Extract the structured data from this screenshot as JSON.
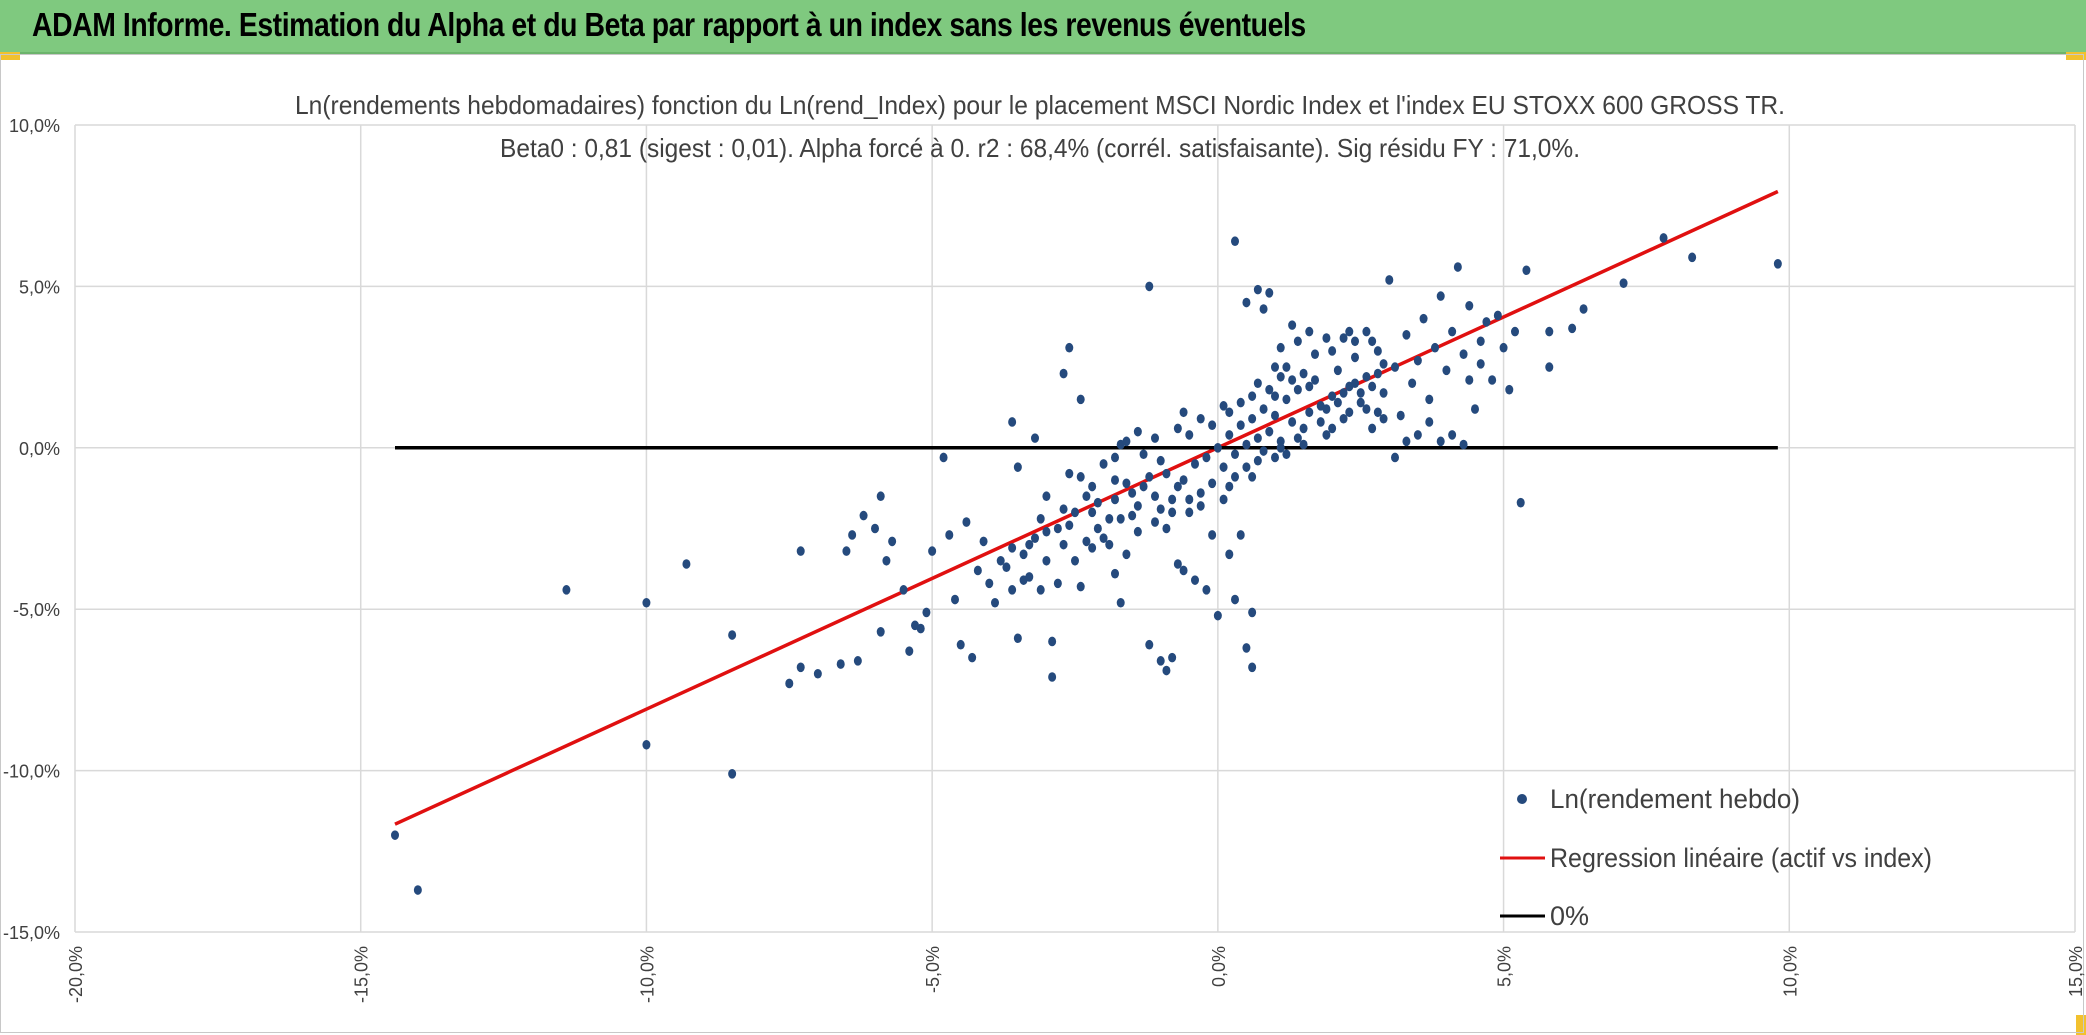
{
  "header": {
    "title": "ADAM Informe. Estimation du Alpha et du Beta par rapport à un index sans les revenus éventuels"
  },
  "colors": {
    "header_bg": "#7fc97f",
    "points": "#254a7d",
    "regression": "#e01010",
    "zero_line": "#000000",
    "grid": "#d9d9d9"
  },
  "chart_data": {
    "type": "scatter",
    "title_line1": "Ln(rendements hebdomadaires) fonction du Ln(rend_Index) pour le placement MSCI Nordic Index et l'index EU STOXX 600 GROSS TR.",
    "title_line2": "Beta0 : 0,81 (sigest : 0,01). Alpha forcé à 0. r2 : 68,4% (corrél. satisfaisante). Sig résidu FY : 71,0%.",
    "xlim": [
      -0.2,
      0.15
    ],
    "ylim": [
      -0.15,
      0.1
    ],
    "x_ticks": [
      "-20,0%",
      "-15,0%",
      "-10,0%",
      "-5,0%",
      "0,0%",
      "5,0%",
      "10,0%",
      "15,0%"
    ],
    "x_tick_values": [
      -0.2,
      -0.15,
      -0.1,
      -0.05,
      0.0,
      0.05,
      0.1,
      0.15
    ],
    "y_ticks": [
      "10,0%",
      "5,0%",
      "0,0%",
      "-5,0%",
      "-10,0%",
      "-15,0%"
    ],
    "y_tick_values": [
      0.1,
      0.05,
      0.0,
      -0.05,
      -0.1,
      -0.15
    ],
    "grid": true,
    "legend_position": "bottom-right",
    "series": [
      {
        "name": "Ln(rendement hebdo)",
        "kind": "points",
        "points": [
          [
            -0.144,
            -0.12
          ],
          [
            -0.14,
            -0.137
          ],
          [
            -0.114,
            -0.044
          ],
          [
            -0.1,
            -0.048
          ],
          [
            -0.1,
            -0.092
          ],
          [
            -0.093,
            -0.036
          ],
          [
            -0.085,
            -0.101
          ],
          [
            -0.085,
            -0.058
          ],
          [
            -0.075,
            -0.073
          ],
          [
            -0.073,
            -0.068
          ],
          [
            -0.073,
            -0.032
          ],
          [
            -0.07,
            -0.07
          ],
          [
            -0.066,
            -0.067
          ],
          [
            -0.065,
            -0.032
          ],
          [
            -0.064,
            -0.027
          ],
          [
            -0.063,
            -0.066
          ],
          [
            -0.062,
            -0.021
          ],
          [
            -0.06,
            -0.025
          ],
          [
            -0.059,
            -0.015
          ],
          [
            -0.059,
            -0.057
          ],
          [
            -0.058,
            -0.035
          ],
          [
            -0.057,
            -0.029
          ],
          [
            -0.055,
            -0.044
          ],
          [
            -0.054,
            -0.063
          ],
          [
            -0.053,
            -0.055
          ],
          [
            -0.052,
            -0.056
          ],
          [
            -0.051,
            -0.051
          ],
          [
            -0.05,
            -0.032
          ],
          [
            -0.048,
            -0.003
          ],
          [
            -0.047,
            -0.027
          ],
          [
            -0.046,
            -0.047
          ],
          [
            -0.045,
            -0.061
          ],
          [
            -0.044,
            -0.023
          ],
          [
            -0.043,
            -0.065
          ],
          [
            -0.042,
            -0.038
          ],
          [
            -0.041,
            -0.029
          ],
          [
            -0.04,
            -0.042
          ],
          [
            -0.039,
            -0.048
          ],
          [
            -0.038,
            -0.035
          ],
          [
            -0.037,
            -0.037
          ],
          [
            -0.036,
            -0.031
          ],
          [
            -0.035,
            -0.006
          ],
          [
            -0.035,
            -0.059
          ],
          [
            -0.034,
            -0.041
          ],
          [
            -0.033,
            -0.03
          ],
          [
            -0.032,
            -0.028
          ],
          [
            -0.031,
            -0.044
          ],
          [
            -0.03,
            -0.015
          ],
          [
            -0.03,
            -0.026
          ],
          [
            -0.029,
            -0.06
          ],
          [
            -0.028,
            -0.042
          ],
          [
            -0.027,
            -0.019
          ],
          [
            -0.026,
            -0.024
          ],
          [
            -0.026,
            -0.008
          ],
          [
            -0.025,
            -0.035
          ],
          [
            -0.024,
            -0.043
          ],
          [
            -0.023,
            -0.029
          ],
          [
            -0.022,
            -0.012
          ],
          [
            -0.022,
            -0.031
          ],
          [
            -0.021,
            -0.017
          ],
          [
            -0.02,
            -0.028
          ],
          [
            -0.019,
            -0.022
          ],
          [
            -0.018,
            -0.039
          ],
          [
            -0.018,
            -0.01
          ],
          [
            -0.017,
            -0.022
          ],
          [
            -0.016,
            -0.033
          ],
          [
            -0.015,
            -0.014
          ],
          [
            -0.014,
            -0.026
          ],
          [
            -0.013,
            -0.012
          ],
          [
            -0.012,
            -0.061
          ],
          [
            -0.011,
            -0.023
          ],
          [
            -0.01,
            -0.019
          ],
          [
            -0.009,
            -0.008
          ],
          [
            -0.008,
            -0.016
          ],
          [
            -0.007,
            -0.036
          ],
          [
            -0.006,
            -0.01
          ],
          [
            -0.005,
            -0.02
          ],
          [
            -0.004,
            -0.005
          ],
          [
            -0.003,
            -0.014
          ],
          [
            -0.002,
            -0.003
          ],
          [
            -0.001,
            -0.011
          ],
          [
            0.0,
            0.0
          ],
          [
            0.001,
            -0.006
          ],
          [
            0.002,
            0.004
          ],
          [
            0.003,
            -0.002
          ],
          [
            0.004,
            0.007
          ],
          [
            0.005,
            0.001
          ],
          [
            0.006,
            0.009
          ],
          [
            0.007,
            0.003
          ],
          [
            0.008,
            0.012
          ],
          [
            0.009,
            0.005
          ],
          [
            0.01,
            0.01
          ],
          [
            0.011,
            0.002
          ],
          [
            0.012,
            0.015
          ],
          [
            0.013,
            0.008
          ],
          [
            0.014,
            0.018
          ],
          [
            0.015,
            0.006
          ],
          [
            0.016,
            0.011
          ],
          [
            0.017,
            0.021
          ],
          [
            0.018,
            0.013
          ],
          [
            0.019,
            0.004
          ],
          [
            0.02,
            0.016
          ],
          [
            0.021,
            0.024
          ],
          [
            0.022,
            0.009
          ],
          [
            0.023,
            0.019
          ],
          [
            0.024,
            0.028
          ],
          [
            0.025,
            0.014
          ],
          [
            0.026,
            0.022
          ],
          [
            0.027,
            0.006
          ],
          [
            0.028,
            0.03
          ],
          [
            0.029,
            0.017
          ],
          [
            0.03,
            0.052
          ],
          [
            0.031,
            0.025
          ],
          [
            0.032,
            0.01
          ],
          [
            0.033,
            0.035
          ],
          [
            0.034,
            0.02
          ],
          [
            0.035,
            0.027
          ],
          [
            0.036,
            0.04
          ],
          [
            0.037,
            0.015
          ],
          [
            0.038,
            0.031
          ],
          [
            0.039,
            0.047
          ],
          [
            0.04,
            0.024
          ],
          [
            0.041,
            0.036
          ],
          [
            0.042,
            0.056
          ],
          [
            0.043,
            0.029
          ],
          [
            0.044,
            0.044
          ],
          [
            0.045,
            0.012
          ],
          [
            0.046,
            0.033
          ],
          [
            0.047,
            0.039
          ],
          [
            0.048,
            0.021
          ],
          [
            0.049,
            0.041
          ],
          [
            0.05,
            0.031
          ],
          [
            0.051,
            0.018
          ],
          [
            0.052,
            0.036
          ],
          [
            0.053,
            -0.017
          ],
          [
            0.054,
            0.055
          ],
          [
            0.058,
            0.036
          ],
          [
            0.058,
            0.025
          ],
          [
            0.062,
            0.037
          ],
          [
            0.064,
            0.043
          ],
          [
            0.071,
            0.051
          ],
          [
            0.078,
            0.065
          ],
          [
            0.083,
            0.059
          ],
          [
            0.098,
            0.057
          ],
          [
            -0.012,
            0.05
          ],
          [
            0.003,
            0.064
          ],
          [
            0.005,
            0.045
          ],
          [
            0.007,
            0.049
          ],
          [
            0.009,
            0.048
          ],
          [
            0.008,
            0.043
          ],
          [
            -0.026,
            0.031
          ],
          [
            -0.024,
            0.015
          ],
          [
            -0.027,
            0.023
          ],
          [
            -0.017,
            0.001
          ],
          [
            -0.032,
            0.003
          ],
          [
            -0.036,
            0.008
          ],
          [
            -0.029,
            -0.071
          ],
          [
            -0.017,
            -0.048
          ],
          [
            -0.01,
            -0.066
          ],
          [
            -0.009,
            -0.069
          ],
          [
            -0.008,
            -0.065
          ],
          [
            0.003,
            -0.047
          ],
          [
            0.005,
            -0.062
          ],
          [
            0.006,
            -0.068
          ],
          [
            0.006,
            -0.051
          ],
          [
            0.0,
            -0.052
          ],
          [
            -0.004,
            -0.041
          ],
          [
            -0.002,
            -0.044
          ],
          [
            -0.006,
            -0.038
          ],
          [
            0.002,
            -0.033
          ],
          [
            0.004,
            -0.027
          ],
          [
            -0.001,
            -0.027
          ],
          [
            0.01,
            0.025
          ],
          [
            0.011,
            0.031
          ],
          [
            0.013,
            0.038
          ],
          [
            0.014,
            0.033
          ],
          [
            0.016,
            0.036
          ],
          [
            0.017,
            0.029
          ],
          [
            0.019,
            0.034
          ],
          [
            0.02,
            0.03
          ],
          [
            0.022,
            0.034
          ],
          [
            0.023,
            0.036
          ],
          [
            0.024,
            0.033
          ],
          [
            0.026,
            0.036
          ],
          [
            0.027,
            0.033
          ],
          [
            0.028,
            0.011
          ],
          [
            0.029,
            0.009
          ],
          [
            0.031,
            -0.003
          ],
          [
            0.033,
            0.002
          ],
          [
            0.035,
            0.004
          ],
          [
            0.037,
            0.008
          ],
          [
            0.039,
            0.002
          ],
          [
            0.041,
            0.004
          ],
          [
            0.043,
            0.001
          ],
          [
            0.044,
            0.021
          ],
          [
            0.046,
            0.026
          ],
          [
            -0.02,
            -0.005
          ],
          [
            -0.018,
            -0.003
          ],
          [
            -0.016,
            0.002
          ],
          [
            -0.014,
            0.005
          ],
          [
            -0.013,
            -0.002
          ],
          [
            -0.011,
            0.003
          ],
          [
            -0.01,
            -0.004
          ],
          [
            -0.007,
            0.006
          ],
          [
            -0.006,
            0.011
          ],
          [
            -0.005,
            0.004
          ],
          [
            -0.003,
            0.009
          ],
          [
            -0.001,
            0.007
          ],
          [
            0.001,
            0.013
          ],
          [
            0.002,
            0.011
          ],
          [
            0.004,
            0.014
          ],
          [
            0.006,
            0.016
          ],
          [
            0.007,
            0.02
          ],
          [
            0.009,
            0.018
          ],
          [
            0.01,
            0.016
          ],
          [
            0.011,
            0.022
          ],
          [
            0.012,
            0.025
          ],
          [
            0.013,
            0.021
          ],
          [
            0.015,
            0.023
          ],
          [
            0.016,
            0.019
          ],
          [
            0.001,
            -0.016
          ],
          [
            0.002,
            -0.012
          ],
          [
            0.003,
            -0.009
          ],
          [
            0.005,
            -0.006
          ],
          [
            0.006,
            -0.009
          ],
          [
            0.007,
            -0.004
          ],
          [
            0.008,
            -0.001
          ],
          [
            0.01,
            -0.003
          ],
          [
            0.011,
            0.0
          ],
          [
            0.012,
            -0.002
          ],
          [
            0.014,
            0.003
          ],
          [
            0.015,
            0.001
          ],
          [
            -0.003,
            -0.018
          ],
          [
            -0.005,
            -0.016
          ],
          [
            -0.007,
            -0.012
          ],
          [
            -0.008,
            -0.02
          ],
          [
            -0.009,
            -0.025
          ],
          [
            -0.011,
            -0.015
          ],
          [
            -0.012,
            -0.009
          ],
          [
            -0.014,
            -0.018
          ],
          [
            -0.015,
            -0.021
          ],
          [
            -0.016,
            -0.011
          ],
          [
            -0.018,
            -0.016
          ],
          [
            -0.019,
            -0.03
          ],
          [
            -0.021,
            -0.025
          ],
          [
            -0.022,
            -0.02
          ],
          [
            -0.023,
            -0.015
          ],
          [
            -0.024,
            -0.009
          ],
          [
            -0.025,
            -0.02
          ],
          [
            -0.027,
            -0.03
          ],
          [
            -0.028,
            -0.025
          ],
          [
            -0.03,
            -0.035
          ],
          [
            -0.031,
            -0.022
          ],
          [
            -0.033,
            -0.04
          ],
          [
            -0.034,
            -0.033
          ],
          [
            -0.036,
            -0.044
          ],
          [
            0.018,
            0.008
          ],
          [
            0.019,
            0.012
          ],
          [
            0.02,
            0.006
          ],
          [
            0.021,
            0.014
          ],
          [
            0.022,
            0.017
          ],
          [
            0.023,
            0.011
          ],
          [
            0.024,
            0.02
          ],
          [
            0.025,
            0.017
          ],
          [
            0.026,
            0.012
          ],
          [
            0.027,
            0.019
          ],
          [
            0.028,
            0.023
          ],
          [
            0.029,
            0.026
          ]
        ]
      },
      {
        "name": "Regression linéaire (actif vs index)",
        "kind": "line",
        "points": [
          [
            -0.144,
            -0.1166
          ],
          [
            0.098,
            0.0794
          ]
        ]
      },
      {
        "name": "0%",
        "kind": "line",
        "points": [
          [
            -0.144,
            0.0
          ],
          [
            0.098,
            0.0
          ]
        ]
      }
    ]
  }
}
